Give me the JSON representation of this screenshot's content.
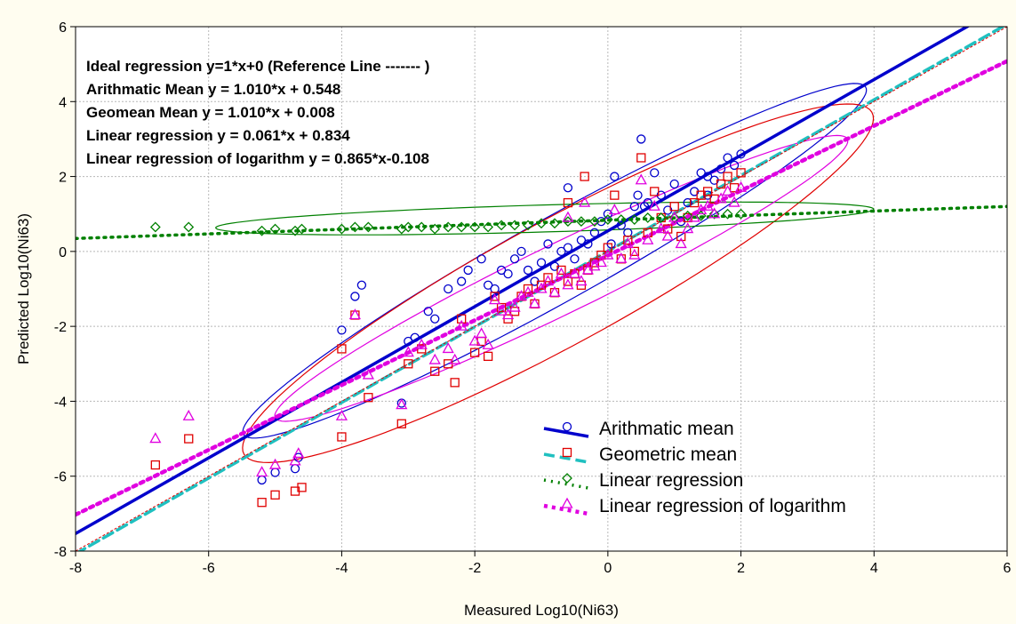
{
  "chart_data": {
    "type": "scatter",
    "xlabel": "Measured Log10(Ni63)",
    "ylabel": "Predicted Log10(Ni63)",
    "xlim": [
      -8,
      6
    ],
    "ylim": [
      -8,
      6
    ],
    "xticks": [
      -8,
      -6,
      -4,
      -2,
      0,
      2,
      4,
      6
    ],
    "yticks": [
      -8,
      -6,
      -4,
      -2,
      0,
      2,
      4,
      6
    ],
    "grid": true,
    "equations": [
      "Ideal regression y=1*x+0 (Reference Line ------- )",
      "Arithmatic Mean y =  1.010*x + 0.548",
      "Geomean Mean  y =  1.010*x + 0.008",
      "Linear regression y =  0.061*x + 0.834",
      "Linear regression of logarithm y = 0.865*x-0.108"
    ],
    "reference_line": {
      "slope": 1,
      "intercept": 0,
      "color": "#e00000"
    },
    "legend_position": "bottom-right",
    "series": [
      {
        "name": "Arithmatic mean",
        "color": "#0000cc",
        "marker": "circle",
        "line_style": "solid",
        "fit": {
          "slope": 1.01,
          "intercept": 0.548
        },
        "ellipse": {
          "cx": -0.8,
          "cy": -0.25,
          "angle_deg": 45.3,
          "rx": 6.6,
          "ry": 0.9
        },
        "points": [
          [
            -5.2,
            -6.1
          ],
          [
            -5.0,
            -5.9
          ],
          [
            -4.7,
            -5.8
          ],
          [
            -4.65,
            -5.5
          ],
          [
            -4.0,
            -2.1
          ],
          [
            -3.8,
            -1.2
          ],
          [
            -3.7,
            -0.9
          ],
          [
            -3.1,
            -4.05
          ],
          [
            -3.0,
            -2.4
          ],
          [
            -2.9,
            -2.3
          ],
          [
            -2.7,
            -1.6
          ],
          [
            -2.6,
            -1.8
          ],
          [
            -2.4,
            -1.0
          ],
          [
            -2.2,
            -0.8
          ],
          [
            -2.1,
            -0.5
          ],
          [
            -1.9,
            -0.2
          ],
          [
            -1.8,
            -0.9
          ],
          [
            -1.7,
            -1.0
          ],
          [
            -1.6,
            -0.5
          ],
          [
            -1.5,
            -0.6
          ],
          [
            -1.4,
            -0.2
          ],
          [
            -1.3,
            0.0
          ],
          [
            -1.2,
            -0.5
          ],
          [
            -1.1,
            -0.8
          ],
          [
            -1.0,
            -0.3
          ],
          [
            -0.9,
            0.2
          ],
          [
            -0.8,
            -0.4
          ],
          [
            -0.7,
            0.0
          ],
          [
            -0.6,
            0.1
          ],
          [
            -0.5,
            -0.2
          ],
          [
            -0.4,
            0.3
          ],
          [
            -0.3,
            0.2
          ],
          [
            -0.2,
            0.5
          ],
          [
            -0.1,
            0.8
          ],
          [
            0.0,
            1.0
          ],
          [
            0.05,
            0.2
          ],
          [
            0.1,
            2.0
          ],
          [
            0.2,
            0.7
          ],
          [
            0.3,
            0.5
          ],
          [
            0.4,
            1.2
          ],
          [
            0.5,
            3.0
          ],
          [
            0.6,
            1.3
          ],
          [
            0.7,
            2.1
          ],
          [
            0.8,
            1.5
          ],
          [
            0.9,
            1.1
          ],
          [
            1.0,
            1.8
          ],
          [
            1.1,
            0.8
          ],
          [
            1.2,
            1.3
          ],
          [
            1.3,
            1.6
          ],
          [
            1.4,
            2.1
          ],
          [
            1.5,
            2.0
          ],
          [
            1.6,
            1.9
          ],
          [
            1.7,
            2.2
          ],
          [
            1.8,
            2.5
          ],
          [
            1.9,
            2.3
          ],
          [
            2.0,
            2.6
          ],
          [
            -0.6,
            1.7
          ],
          [
            0.45,
            1.5
          ],
          [
            0.55,
            1.2
          ],
          [
            1.5,
            1.5
          ]
        ]
      },
      {
        "name": "Geometric mean",
        "color": "#e00000",
        "marker": "square",
        "line_style": "dashed",
        "line_color": "#20c0c0",
        "fit": {
          "slope": 1.01,
          "intercept": 0.008
        },
        "ellipse": {
          "cx": -0.75,
          "cy": -0.85,
          "angle_deg": 45.3,
          "rx": 6.6,
          "ry": 1.35
        },
        "points": [
          [
            -6.8,
            -5.7
          ],
          [
            -6.3,
            -5.0
          ],
          [
            -5.2,
            -6.7
          ],
          [
            -5.0,
            -6.5
          ],
          [
            -4.7,
            -6.4
          ],
          [
            -4.6,
            -6.3
          ],
          [
            -4.0,
            -4.95
          ],
          [
            -4.0,
            -2.6
          ],
          [
            -3.8,
            -1.7
          ],
          [
            -3.6,
            -3.9
          ],
          [
            -3.1,
            -4.6
          ],
          [
            -3.0,
            -3.0
          ],
          [
            -2.8,
            -2.6
          ],
          [
            -2.6,
            -3.2
          ],
          [
            -2.4,
            -3.0
          ],
          [
            -2.3,
            -3.5
          ],
          [
            -2.2,
            -1.8
          ],
          [
            -2.0,
            -2.7
          ],
          [
            -1.9,
            -2.4
          ],
          [
            -1.8,
            -2.8
          ],
          [
            -1.7,
            -1.2
          ],
          [
            -1.6,
            -1.5
          ],
          [
            -1.5,
            -1.8
          ],
          [
            -1.4,
            -1.6
          ],
          [
            -1.3,
            -1.2
          ],
          [
            -1.2,
            -1.0
          ],
          [
            -1.1,
            -1.4
          ],
          [
            -1.0,
            -0.9
          ],
          [
            -0.9,
            -0.7
          ],
          [
            -0.8,
            -1.1
          ],
          [
            -0.7,
            -0.5
          ],
          [
            -0.6,
            -0.8
          ],
          [
            -0.5,
            -0.6
          ],
          [
            -0.4,
            -0.9
          ],
          [
            -0.3,
            -0.5
          ],
          [
            -0.2,
            -0.3
          ],
          [
            -0.1,
            -0.1
          ],
          [
            0.0,
            0.1
          ],
          [
            0.1,
            1.5
          ],
          [
            0.2,
            -0.2
          ],
          [
            0.3,
            0.3
          ],
          [
            0.4,
            0.0
          ],
          [
            0.5,
            2.5
          ],
          [
            0.6,
            0.5
          ],
          [
            0.7,
            1.6
          ],
          [
            0.8,
            0.9
          ],
          [
            0.9,
            0.6
          ],
          [
            1.0,
            1.2
          ],
          [
            1.1,
            0.4
          ],
          [
            1.2,
            0.9
          ],
          [
            1.3,
            1.3
          ],
          [
            1.4,
            1.5
          ],
          [
            1.5,
            1.6
          ],
          [
            1.6,
            1.4
          ],
          [
            1.7,
            1.8
          ],
          [
            1.8,
            2.0
          ],
          [
            1.9,
            1.7
          ],
          [
            2.0,
            2.1
          ],
          [
            -0.35,
            2.0
          ],
          [
            -0.6,
            1.3
          ]
        ]
      },
      {
        "name": "Linear regression",
        "color": "#008000",
        "marker": "diamond",
        "line_style": "dotted",
        "fit": {
          "slope": 0.061,
          "intercept": 0.834
        },
        "ellipse": {
          "cx": -0.95,
          "cy": 0.88,
          "angle_deg": 2.9,
          "rx": 4.95,
          "ry": 0.36
        },
        "points": [
          [
            -6.8,
            0.65
          ],
          [
            -6.3,
            0.65
          ],
          [
            -5.2,
            0.55
          ],
          [
            -5.0,
            0.6
          ],
          [
            -4.7,
            0.55
          ],
          [
            -4.6,
            0.6
          ],
          [
            -4.0,
            0.6
          ],
          [
            -3.8,
            0.65
          ],
          [
            -3.6,
            0.65
          ],
          [
            -3.1,
            0.6
          ],
          [
            -3.0,
            0.65
          ],
          [
            -2.8,
            0.65
          ],
          [
            -2.6,
            0.6
          ],
          [
            -2.4,
            0.65
          ],
          [
            -2.2,
            0.65
          ],
          [
            -2.0,
            0.65
          ],
          [
            -1.8,
            0.65
          ],
          [
            -1.6,
            0.7
          ],
          [
            -1.4,
            0.7
          ],
          [
            -1.2,
            0.7
          ],
          [
            -1.0,
            0.75
          ],
          [
            -0.8,
            0.75
          ],
          [
            -0.6,
            0.8
          ],
          [
            -0.4,
            0.8
          ],
          [
            -0.2,
            0.8
          ],
          [
            0.0,
            0.85
          ],
          [
            0.2,
            0.85
          ],
          [
            0.4,
            0.85
          ],
          [
            0.6,
            0.9
          ],
          [
            0.8,
            0.9
          ],
          [
            1.0,
            0.9
          ],
          [
            1.2,
            0.95
          ],
          [
            1.4,
            0.95
          ],
          [
            1.6,
            1.0
          ],
          [
            1.8,
            1.0
          ],
          [
            2.0,
            1.0
          ]
        ]
      },
      {
        "name": "Linear regression of logarithm",
        "color": "#e000e0",
        "marker": "triangle",
        "line_style": "dotted",
        "fit": {
          "slope": 0.865,
          "intercept": -0.108
        },
        "ellipse": {
          "cx": -0.7,
          "cy": -0.72,
          "angle_deg": 41.4,
          "rx": 5.7,
          "ry": 0.78
        },
        "points": [
          [
            -6.8,
            -5.0
          ],
          [
            -6.3,
            -4.4
          ],
          [
            -5.2,
            -5.9
          ],
          [
            -5.0,
            -5.7
          ],
          [
            -4.7,
            -5.6
          ],
          [
            -4.65,
            -5.4
          ],
          [
            -4.0,
            -4.4
          ],
          [
            -3.8,
            -1.7
          ],
          [
            -3.6,
            -3.3
          ],
          [
            -3.1,
            -4.1
          ],
          [
            -3.0,
            -2.7
          ],
          [
            -2.8,
            -2.5
          ],
          [
            -2.6,
            -2.9
          ],
          [
            -2.4,
            -2.6
          ],
          [
            -2.3,
            -2.9
          ],
          [
            -2.2,
            -2.0
          ],
          [
            -2.0,
            -2.4
          ],
          [
            -1.9,
            -2.2
          ],
          [
            -1.8,
            -2.5
          ],
          [
            -1.7,
            -1.3
          ],
          [
            -1.6,
            -1.6
          ],
          [
            -1.5,
            -1.7
          ],
          [
            -1.4,
            -1.5
          ],
          [
            -1.3,
            -1.2
          ],
          [
            -1.2,
            -1.1
          ],
          [
            -1.1,
            -1.4
          ],
          [
            -1.0,
            -1.0
          ],
          [
            -0.9,
            -0.8
          ],
          [
            -0.8,
            -1.1
          ],
          [
            -0.7,
            -0.6
          ],
          [
            -0.6,
            -0.9
          ],
          [
            -0.5,
            -0.6
          ],
          [
            -0.4,
            -0.8
          ],
          [
            -0.3,
            -0.5
          ],
          [
            -0.2,
            -0.4
          ],
          [
            -0.1,
            -0.3
          ],
          [
            0.0,
            -0.1
          ],
          [
            0.1,
            1.1
          ],
          [
            0.2,
            -0.2
          ],
          [
            0.3,
            0.2
          ],
          [
            0.4,
            -0.1
          ],
          [
            0.5,
            1.9
          ],
          [
            0.6,
            0.3
          ],
          [
            0.7,
            1.2
          ],
          [
            0.8,
            0.6
          ],
          [
            0.9,
            0.4
          ],
          [
            1.0,
            0.9
          ],
          [
            1.1,
            0.2
          ],
          [
            1.2,
            0.6
          ],
          [
            1.3,
            0.9
          ],
          [
            1.4,
            1.1
          ],
          [
            1.5,
            1.2
          ],
          [
            1.6,
            1.0
          ],
          [
            1.7,
            1.4
          ],
          [
            1.8,
            1.6
          ],
          [
            1.9,
            1.3
          ],
          [
            2.0,
            1.7
          ],
          [
            -0.6,
            0.9
          ],
          [
            -0.35,
            1.3
          ]
        ]
      }
    ]
  }
}
